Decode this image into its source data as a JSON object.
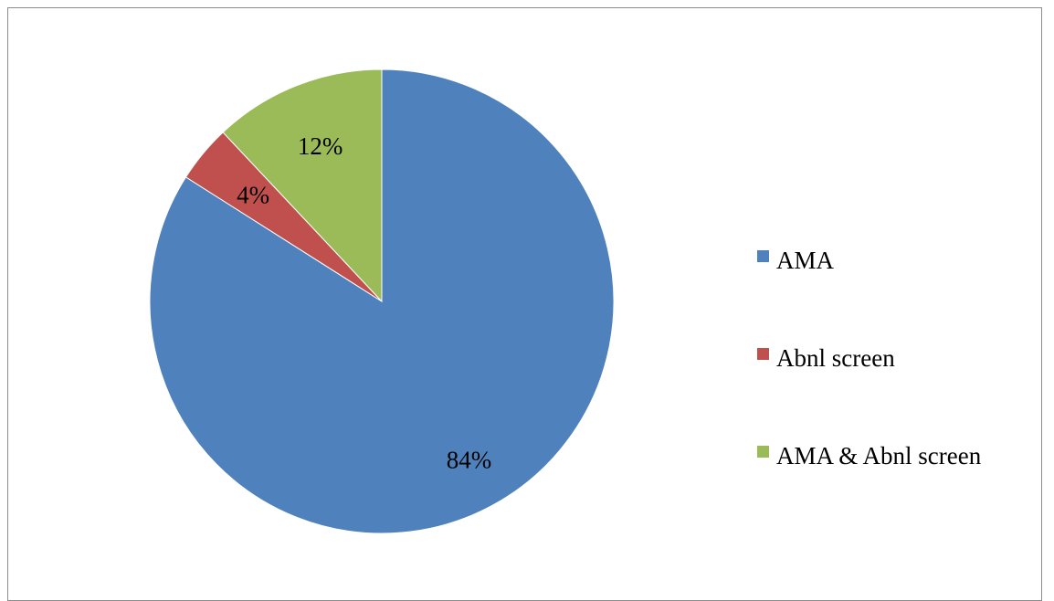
{
  "chart_data": {
    "type": "pie",
    "categories": [
      "AMA",
      "Abnl screen",
      "AMA & Abnl screen"
    ],
    "values": [
      84,
      4,
      12
    ],
    "data_labels": [
      "84%",
      "4%",
      "12%"
    ],
    "colors": [
      "#4F81BD",
      "#C0504D",
      "#9BBB59"
    ],
    "title": "",
    "legend": {
      "position": "right",
      "entries": [
        "AMA",
        "Abnl screen",
        "AMA & Abnl screen"
      ]
    }
  }
}
